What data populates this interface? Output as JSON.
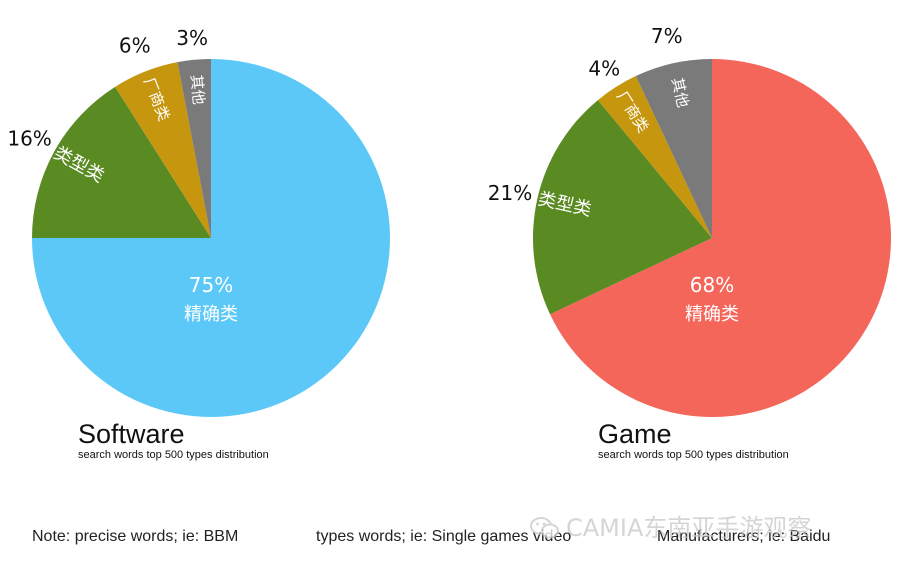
{
  "chart_data": [
    {
      "type": "pie",
      "title": "Software",
      "subtitle": "search words top 500 types distribution",
      "slices": [
        {
          "label": "精确类",
          "value": 75,
          "display": "75%",
          "color": "#5bc8f7"
        },
        {
          "label": "类型类",
          "value": 16,
          "display": "16%",
          "color": "#5a8a22"
        },
        {
          "label": "厂商类",
          "value": 6,
          "display": "6%",
          "color": "#c6960f"
        },
        {
          "label": "其他",
          "value": 3,
          "display": "3%",
          "color": "#7a7a7a"
        }
      ]
    },
    {
      "type": "pie",
      "title": "Game",
      "subtitle": "search words top 500 types distribution",
      "slices": [
        {
          "label": "精确类",
          "value": 68,
          "display": "68%",
          "color": "#f4655a"
        },
        {
          "label": "类型类",
          "value": 21,
          "display": "21%",
          "color": "#5a8a22"
        },
        {
          "label": "厂商类",
          "value": 4,
          "display": "4%",
          "color": "#c6960f"
        },
        {
          "label": "其他",
          "value": 7,
          "display": "7%",
          "color": "#7a7a7a"
        }
      ]
    }
  ],
  "notes": {
    "precise": "Note: precise words; ie: BBM",
    "types": "types words; ie: Single games video",
    "manufacturers": "Manufacturers; ie: Baidu"
  },
  "watermark": {
    "text": "CAMIA东南亚手游观察",
    "icon": "wechat-icon"
  }
}
